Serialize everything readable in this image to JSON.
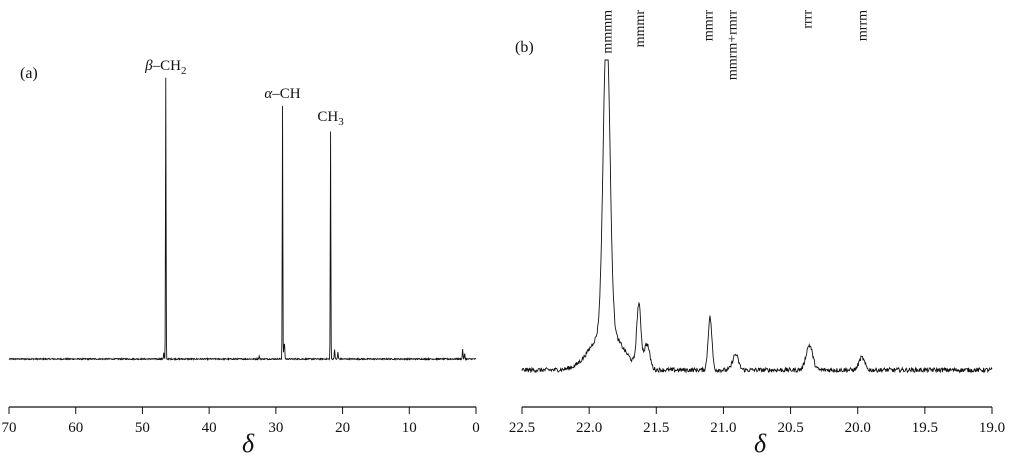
{
  "chart_data": [
    {
      "type": "line",
      "panel_label": "(a)",
      "xlabel": "δ",
      "ylabel": "",
      "xlim": [
        70,
        0
      ],
      "x_reversed": true,
      "x_ticks": [
        70,
        60,
        50,
        40,
        30,
        20,
        10,
        0
      ],
      "annotations": [
        {
          "x": 46.5,
          "greek": "β",
          "text": "–CH",
          "sub": "2"
        },
        {
          "x": 29.0,
          "greek": "α",
          "text": "–CH",
          "sub": ""
        },
        {
          "x": 21.8,
          "greek": "",
          "text": "CH",
          "sub": "3"
        }
      ],
      "series": [
        {
          "peaks": [
            {
              "x": 46.5,
              "height": 1.0
            },
            {
              "x": 29.0,
              "height": 0.9
            },
            {
              "x": 21.8,
              "height": 0.81
            }
          ]
        }
      ]
    },
    {
      "type": "line",
      "panel_label": "(b)",
      "xlabel": "δ",
      "ylabel": "",
      "xlim": [
        22.5,
        19.0
      ],
      "x_reversed": true,
      "x_ticks": [
        "22.5",
        "22.0",
        "21.5",
        "21.0",
        "20.5",
        "20.0",
        "19.5",
        "19.0"
      ],
      "annotations": [
        {
          "x": 21.87,
          "text": "mmmm"
        },
        {
          "x": 21.63,
          "text": "mmmr"
        },
        {
          "x": 21.12,
          "text": "mmrr"
        },
        {
          "x": 20.94,
          "text": "mmrm+rmrr"
        },
        {
          "x": 20.38,
          "text": "rrrr"
        },
        {
          "x": 19.97,
          "text": "mrrm"
        }
      ],
      "series": [
        {
          "peaks": [
            {
              "x": 21.87,
              "height": 1.0
            },
            {
              "x": 21.63,
              "height": 0.2
            },
            {
              "x": 21.57,
              "height": 0.08
            },
            {
              "x": 21.1,
              "height": 0.17
            },
            {
              "x": 20.91,
              "height": 0.05
            },
            {
              "x": 20.36,
              "height": 0.08
            },
            {
              "x": 19.97,
              "height": 0.04
            }
          ]
        }
      ]
    }
  ]
}
